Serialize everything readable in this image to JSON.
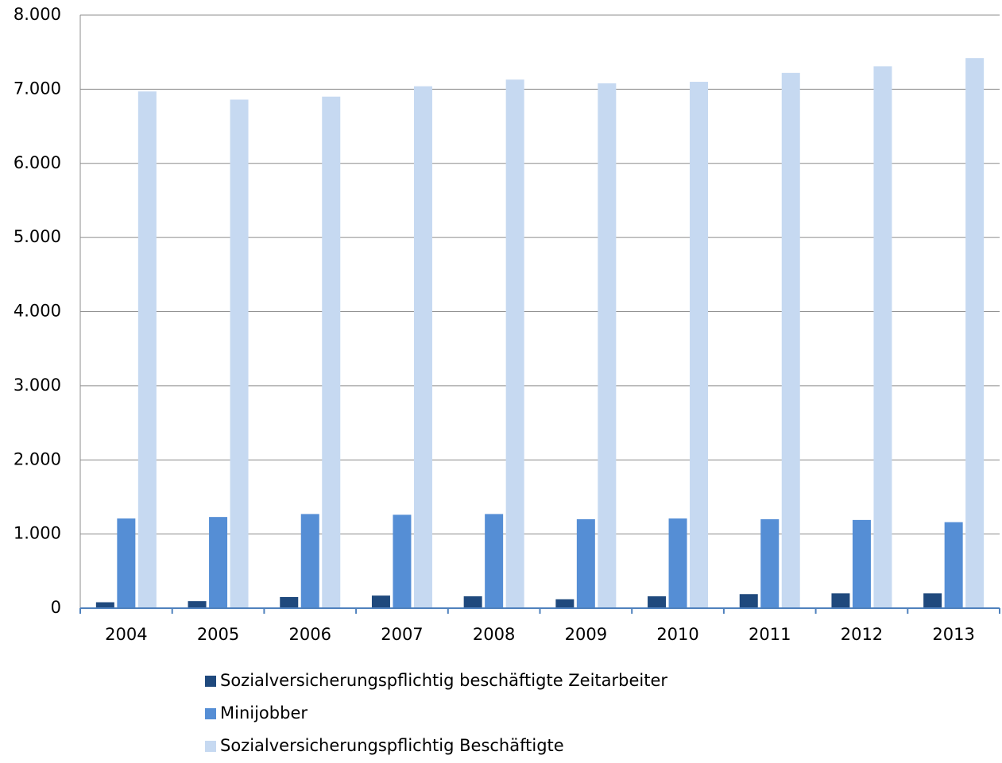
{
  "chart_data": {
    "type": "bar",
    "categories": [
      "2004",
      "2005",
      "2006",
      "2007",
      "2008",
      "2009",
      "2010",
      "2011",
      "2012",
      "2013"
    ],
    "series": [
      {
        "name": "Sozialversicherungspflichtig beschäftigte Zeitarbeiter",
        "color": "#1f497d",
        "values": [
          80,
          95,
          150,
          170,
          160,
          120,
          160,
          190,
          200,
          200
        ]
      },
      {
        "name": "Minijobber",
        "color": "#558ed5",
        "values": [
          1210,
          1230,
          1270,
          1260,
          1270,
          1200,
          1210,
          1200,
          1190,
          1160
        ]
      },
      {
        "name": "Sozialversicherungspflichtig Beschäftigte",
        "color": "#c6d9f1",
        "values": [
          6970,
          6860,
          6900,
          7040,
          7130,
          7080,
          7100,
          7220,
          7310,
          7420
        ]
      }
    ],
    "ylim": [
      0,
      8000
    ],
    "yticks": [
      0,
      {
        "value": 1000,
        "label": "1.000"
      },
      {
        "value": 2000,
        "label": "2.000"
      },
      {
        "value": 3000,
        "label": "3.000"
      },
      {
        "value": 4000,
        "label": "4.000"
      },
      {
        "value": 5000,
        "label": "5.000"
      },
      {
        "value": 6000,
        "label": "6.000"
      },
      {
        "value": 7000,
        "label": "7.000"
      },
      {
        "value": 8000,
        "label": "8.000"
      }
    ],
    "grid": true,
    "legend": "bottom"
  }
}
